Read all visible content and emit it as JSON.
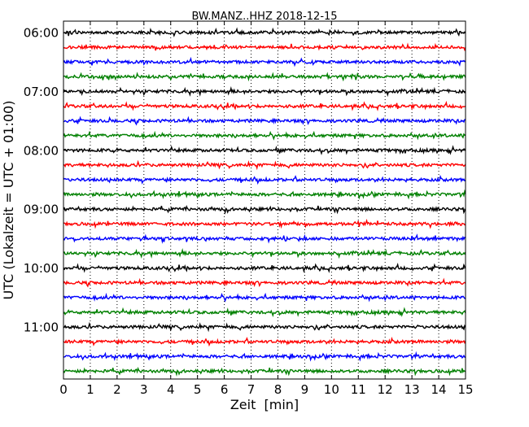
{
  "chart_data": {
    "type": "line",
    "title": "BW.MANZ..HHZ 2018-12-15",
    "xlabel": "Zeit  [min]",
    "ylabel": "UTC (Lokalzeit = UTC + 01:00)",
    "xlim": [
      0,
      15
    ],
    "x_ticks": [
      0,
      1,
      2,
      3,
      4,
      5,
      6,
      7,
      8,
      9,
      10,
      11,
      12,
      13,
      14,
      15
    ],
    "x_tick_labels": [
      "0",
      "1",
      "2",
      "3",
      "4",
      "5",
      "6",
      "7",
      "8",
      "9",
      "10",
      "11",
      "12",
      "13",
      "14",
      "15"
    ],
    "y_tick_labels": [
      "06:00",
      "07:00",
      "08:00",
      "09:00",
      "10:00",
      "11:00"
    ],
    "y_tick_trace_index": [
      0,
      4,
      8,
      12,
      16,
      20
    ],
    "trace_interval_min": 15,
    "trace_start_times": [
      "06:00",
      "06:15",
      "06:30",
      "06:45",
      "07:00",
      "07:15",
      "07:30",
      "07:45",
      "08:00",
      "08:15",
      "08:30",
      "08:45",
      "09:00",
      "09:15",
      "09:30",
      "09:45",
      "10:00",
      "10:15",
      "10:30",
      "10:45",
      "11:00",
      "11:15",
      "11:30",
      "11:45"
    ],
    "trace_colors": [
      "#000000",
      "#ff0000",
      "#0000ff",
      "#008000"
    ],
    "grid": "vertical-dotted",
    "note_values": "continuous seismic noise traces"
  }
}
